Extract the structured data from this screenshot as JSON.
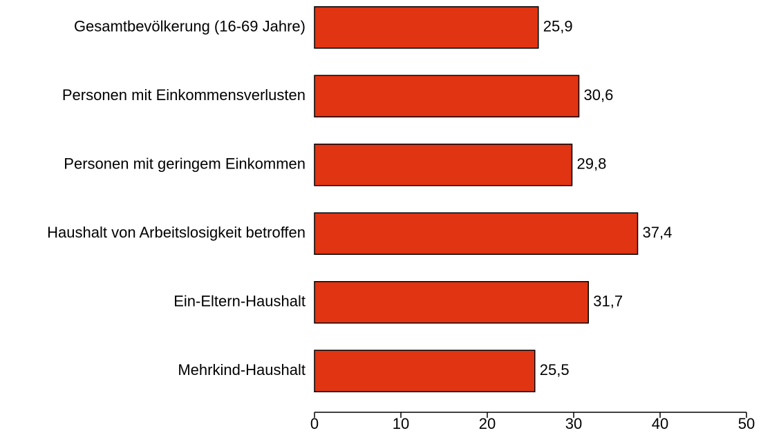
{
  "chart_data": {
    "type": "bar",
    "categories": [
      "Gesamtbevölkerung (16-69 Jahre)",
      "Personen mit Einkommensverlusten",
      "Personen mit geringem Einkommen",
      "Haushalt von Arbeitslosigkeit betroffen",
      "Ein-Eltern-Haushalt",
      "Mehrkind-Haushalt"
    ],
    "values": [
      25.9,
      30.6,
      29.8,
      37.4,
      31.7,
      25.5
    ],
    "value_labels": [
      "25,9",
      "30,6",
      "29,8",
      "37,4",
      "31,7",
      "25,5"
    ],
    "color": "#e03412",
    "xlim": [
      0,
      50
    ],
    "xticks": [
      0,
      10,
      20,
      30,
      40,
      50
    ]
  }
}
